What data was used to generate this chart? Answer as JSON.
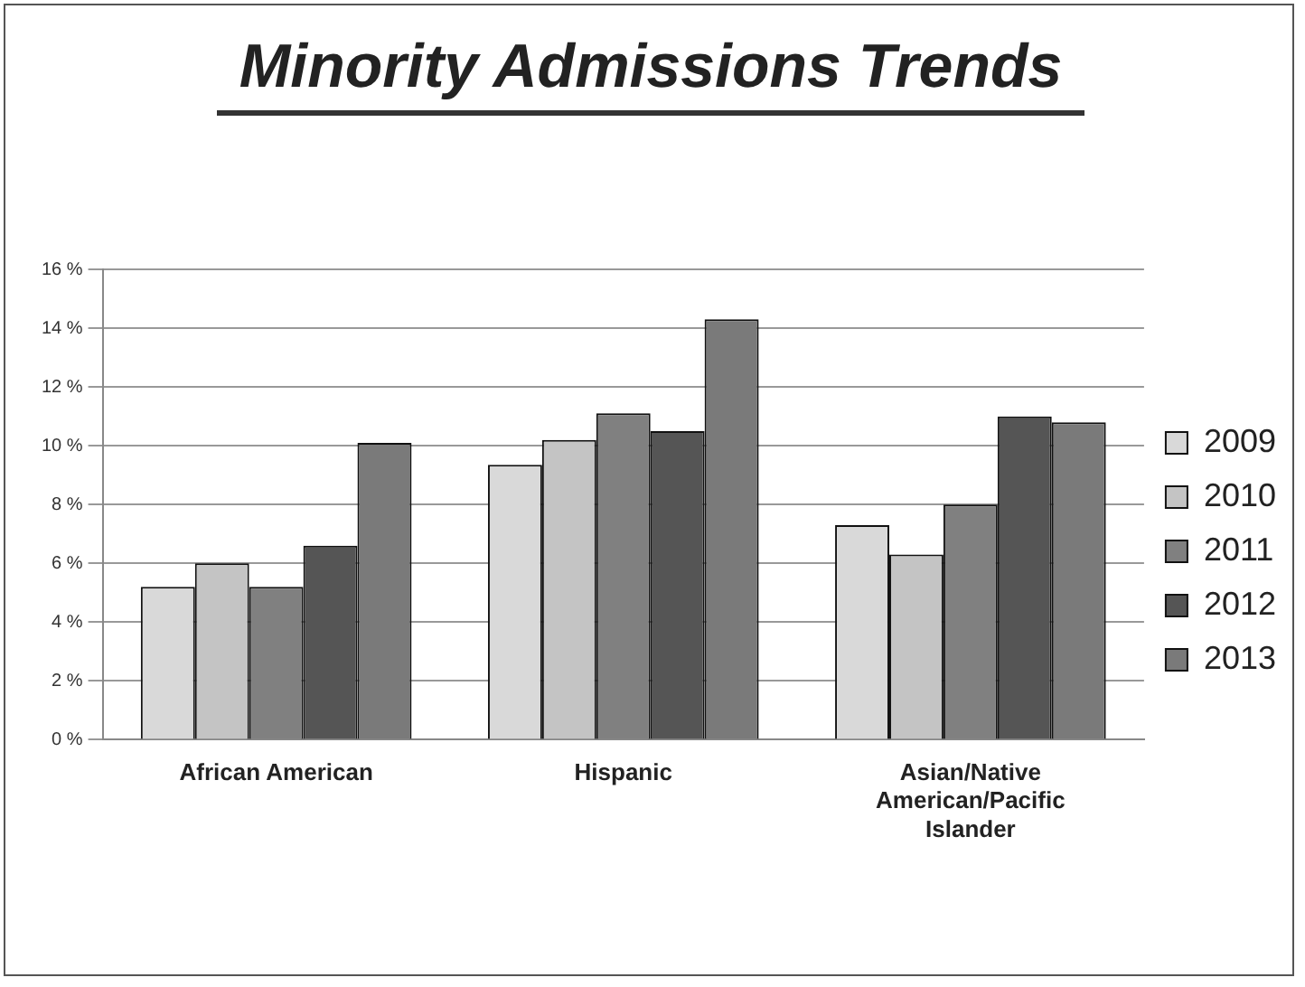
{
  "chart_data": {
    "type": "bar",
    "title": "Minority Admissions Trends",
    "categories": [
      "African American",
      "Hispanic",
      "Asian/Native American/Pacific Islander"
    ],
    "series": [
      {
        "name": "2009",
        "color": "#d9d9d9",
        "values": [
          5.2,
          9.35,
          7.3
        ]
      },
      {
        "name": "2010",
        "color": "#c4c4c4",
        "values": [
          6.0,
          10.2,
          6.3
        ]
      },
      {
        "name": "2011",
        "color": "#808080",
        "values": [
          5.2,
          11.1,
          8.0
        ]
      },
      {
        "name": "2012",
        "color": "#555555",
        "values": [
          6.6,
          10.5,
          11.0
        ]
      },
      {
        "name": "2013",
        "color": "#7a7a7a",
        "values": [
          10.1,
          14.3,
          10.8
        ]
      }
    ],
    "ylim": [
      0,
      16
    ],
    "yticks": [
      {
        "value": 0,
        "label": "0 %"
      },
      {
        "value": 2,
        "label": "2 %"
      },
      {
        "value": 4,
        "label": "4 %"
      },
      {
        "value": 6,
        "label": "6 %"
      },
      {
        "value": 8,
        "label": "8 %"
      },
      {
        "value": 10,
        "label": "10 %"
      },
      {
        "value": 12,
        "label": "12 %"
      },
      {
        "value": 14,
        "label": "14 %"
      },
      {
        "value": 16,
        "label": "16 %"
      }
    ],
    "grid": "y",
    "legend": "right"
  }
}
